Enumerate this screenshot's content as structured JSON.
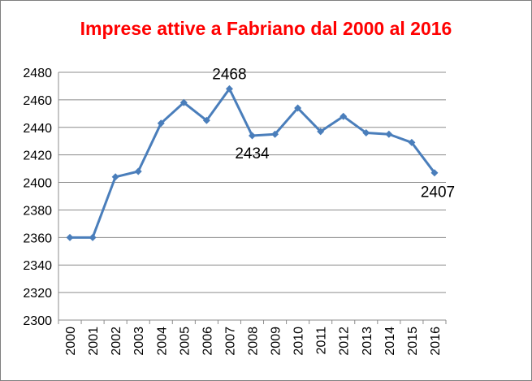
{
  "chart_data": {
    "type": "line",
    "title": "Imprese attive a Fabriano dal 2000 al 2016",
    "xlabel": "",
    "ylabel": "",
    "categories": [
      "2000",
      "2001",
      "2002",
      "2003",
      "2004",
      "2005",
      "2006",
      "2007",
      "2008",
      "2009",
      "2010",
      "2011",
      "2012",
      "2013",
      "2014",
      "2015",
      "2016"
    ],
    "series": [
      {
        "values": [
          2360,
          2360,
          2404,
          2408,
          2443,
          2458,
          2445,
          2468,
          2434,
          2435,
          2454,
          2437,
          2448,
          2436,
          2435,
          2429,
          2407
        ],
        "color": "#4a7ebb"
      }
    ],
    "ylim": [
      2300,
      2480
    ],
    "yticks": [
      "2300",
      "2320",
      "2340",
      "2360",
      "2380",
      "2400",
      "2420",
      "2440",
      "2460",
      "2480"
    ],
    "grid": true,
    "data_labels": [
      {
        "index": 7,
        "text": "2468"
      },
      {
        "index": 8,
        "text": "2434"
      },
      {
        "index": 16,
        "text": "2407"
      }
    ],
    "colors": {
      "title": "#ff0000",
      "line": "#4a7ebb",
      "grid": "#8c8c8c"
    }
  }
}
